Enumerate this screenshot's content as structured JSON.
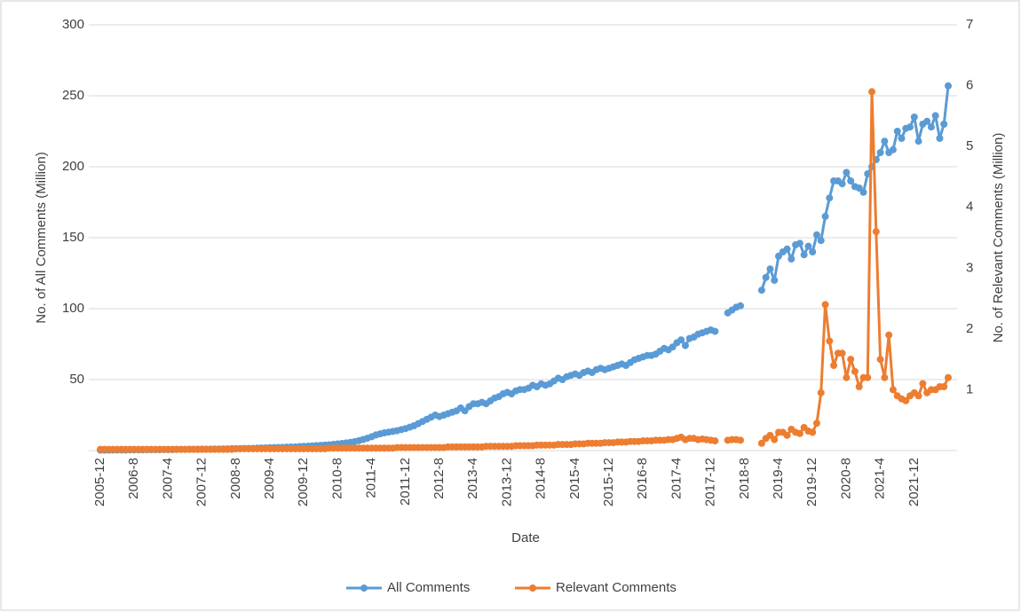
{
  "chart_data": {
    "type": "line",
    "x_label": "Date",
    "y_label": "No. of All Comments (Million)",
    "y2_label": "No. of Relevant Comments (Million)",
    "ylim": [
      0,
      300
    ],
    "yticks": [
      50,
      100,
      150,
      200,
      250,
      300
    ],
    "y2lim": [
      0,
      7
    ],
    "y2ticks": [
      1,
      2,
      3,
      4,
      5,
      6,
      7
    ],
    "grid": true,
    "legend": "bottom",
    "categories": [
      "2005-12",
      null,
      null,
      null,
      null,
      null,
      null,
      null,
      "2006-8",
      null,
      null,
      null,
      null,
      null,
      null,
      null,
      "2007-4",
      null,
      null,
      null,
      null,
      null,
      null,
      null,
      "2007-12",
      null,
      null,
      null,
      null,
      null,
      null,
      null,
      "2008-8",
      null,
      null,
      null,
      null,
      null,
      null,
      null,
      "2009-4",
      null,
      null,
      null,
      null,
      null,
      null,
      null,
      "2009-12",
      null,
      null,
      null,
      null,
      null,
      null,
      null,
      "2010-8",
      null,
      null,
      null,
      null,
      null,
      null,
      null,
      "2011-4",
      null,
      null,
      null,
      null,
      null,
      null,
      null,
      "2011-12",
      null,
      null,
      null,
      null,
      null,
      null,
      null,
      "2012-8",
      null,
      null,
      null,
      null,
      null,
      null,
      null,
      "2013-4",
      null,
      null,
      null,
      null,
      null,
      null,
      null,
      "2013-12",
      null,
      null,
      null,
      null,
      null,
      null,
      null,
      "2014-8",
      null,
      null,
      null,
      null,
      null,
      null,
      null,
      "2015-4",
      null,
      null,
      null,
      null,
      null,
      null,
      null,
      "2015-12",
      null,
      null,
      null,
      null,
      null,
      null,
      null,
      "2016-8",
      null,
      null,
      null,
      null,
      null,
      null,
      null,
      "2017-4",
      null,
      null,
      null,
      null,
      null,
      null,
      null,
      "2017-12",
      null,
      null,
      null,
      null,
      null,
      null,
      null,
      "2018-8",
      null,
      null,
      null,
      null,
      null,
      null,
      null,
      "2019-4",
      null,
      null,
      null,
      null,
      null,
      null,
      null,
      "2019-12",
      null,
      null,
      null,
      null,
      null,
      null,
      null,
      "2020-8",
      null,
      null,
      null,
      null,
      null,
      null,
      null,
      "2021-4",
      null,
      null,
      null,
      null,
      null,
      null,
      null,
      "2021-12",
      null,
      null,
      null,
      null,
      null,
      null,
      null,
      null
    ],
    "series": [
      {
        "name": "All Comments",
        "color": "#5b9bd5",
        "axis": "y",
        "values": [
          0.3,
          0.3,
          0.3,
          0.4,
          0.4,
          0.4,
          0.4,
          0.5,
          0.5,
          0.5,
          0.5,
          0.6,
          0.6,
          0.6,
          0.6,
          0.7,
          0.7,
          0.7,
          0.8,
          0.8,
          0.8,
          0.9,
          0.9,
          0.9,
          1,
          1,
          1,
          1.1,
          1.1,
          1.2,
          1.2,
          1.3,
          1.3,
          1.4,
          1.5,
          1.5,
          1.6,
          1.7,
          1.8,
          1.9,
          2,
          2.1,
          2.2,
          2.3,
          2.4,
          2.5,
          2.6,
          2.8,
          3,
          3.1,
          3.3,
          3.5,
          3.7,
          3.9,
          4.1,
          4.4,
          4.7,
          5,
          5.4,
          5.8,
          6.3,
          7,
          7.8,
          8.7,
          9.8,
          11,
          11.8,
          12.5,
          13,
          13.5,
          14,
          14.8,
          15.5,
          16.5,
          17.5,
          19,
          20.5,
          22,
          23.5,
          25,
          24,
          25,
          26,
          27,
          28,
          30,
          28,
          31,
          33,
          33,
          34,
          33,
          35,
          37,
          38,
          40,
          41,
          40,
          42,
          43,
          43,
          44,
          46,
          45,
          47,
          46,
          47,
          49,
          51,
          50,
          52,
          53,
          54,
          53,
          55,
          56,
          55,
          57,
          58,
          57,
          58,
          59,
          60,
          61,
          60,
          62,
          64,
          65,
          66,
          67,
          67,
          68,
          70,
          72,
          71,
          73,
          76,
          78,
          74,
          79,
          80,
          82,
          83,
          84,
          85,
          84,
          null,
          null,
          97,
          99,
          101,
          102,
          null,
          null,
          null,
          null,
          113,
          122,
          128,
          120,
          137,
          140,
          142,
          135,
          145,
          146,
          138,
          144,
          140,
          152,
          148,
          165,
          178,
          190,
          190,
          188,
          196,
          190,
          186,
          185,
          182,
          195,
          200,
          205,
          210,
          218,
          210,
          212,
          225,
          220,
          227,
          228,
          235,
          218,
          230,
          232,
          228,
          236,
          220,
          230,
          257
        ]
      },
      {
        "name": "Relevant Comments",
        "color": "#ed7d31",
        "axis": "y2",
        "values": [
          0.02,
          0.02,
          0.02,
          0.02,
          0.02,
          0.02,
          0.02,
          0.02,
          0.02,
          0.02,
          0.02,
          0.02,
          0.02,
          0.02,
          0.02,
          0.02,
          0.02,
          0.02,
          0.02,
          0.02,
          0.02,
          0.02,
          0.02,
          0.02,
          0.02,
          0.02,
          0.02,
          0.02,
          0.02,
          0.02,
          0.02,
          0.02,
          0.03,
          0.03,
          0.03,
          0.03,
          0.03,
          0.03,
          0.03,
          0.03,
          0.03,
          0.03,
          0.03,
          0.03,
          0.03,
          0.03,
          0.03,
          0.03,
          0.03,
          0.03,
          0.03,
          0.03,
          0.03,
          0.03,
          0.04,
          0.04,
          0.04,
          0.04,
          0.04,
          0.04,
          0.04,
          0.04,
          0.04,
          0.04,
          0.04,
          0.04,
          0.04,
          0.04,
          0.04,
          0.04,
          0.05,
          0.05,
          0.05,
          0.05,
          0.05,
          0.05,
          0.05,
          0.05,
          0.05,
          0.05,
          0.05,
          0.05,
          0.06,
          0.06,
          0.06,
          0.06,
          0.06,
          0.06,
          0.06,
          0.06,
          0.06,
          0.07,
          0.07,
          0.07,
          0.07,
          0.07,
          0.07,
          0.07,
          0.08,
          0.08,
          0.08,
          0.08,
          0.08,
          0.09,
          0.09,
          0.09,
          0.09,
          0.09,
          0.1,
          0.1,
          0.1,
          0.1,
          0.11,
          0.11,
          0.11,
          0.12,
          0.12,
          0.12,
          0.12,
          0.13,
          0.13,
          0.13,
          0.14,
          0.14,
          0.14,
          0.15,
          0.15,
          0.15,
          0.16,
          0.16,
          0.16,
          0.17,
          0.17,
          0.17,
          0.18,
          0.18,
          0.2,
          0.22,
          0.18,
          0.2,
          0.2,
          0.18,
          0.19,
          0.18,
          0.17,
          0.16,
          null,
          null,
          0.17,
          0.18,
          0.18,
          0.17,
          null,
          null,
          null,
          null,
          0.12,
          0.2,
          0.25,
          0.18,
          0.3,
          0.3,
          0.25,
          0.35,
          0.3,
          0.28,
          0.38,
          0.32,
          0.3,
          0.45,
          0.95,
          2.4,
          1.8,
          1.4,
          1.6,
          1.6,
          1.2,
          1.5,
          1.3,
          1.05,
          1.2,
          1.2,
          5.9,
          3.6,
          1.5,
          1.2,
          1.9,
          1,
          0.9,
          0.85,
          0.82,
          0.9,
          0.95,
          0.9,
          1.1,
          0.95,
          1,
          1,
          1.05,
          1.05,
          1.2
        ]
      }
    ]
  }
}
